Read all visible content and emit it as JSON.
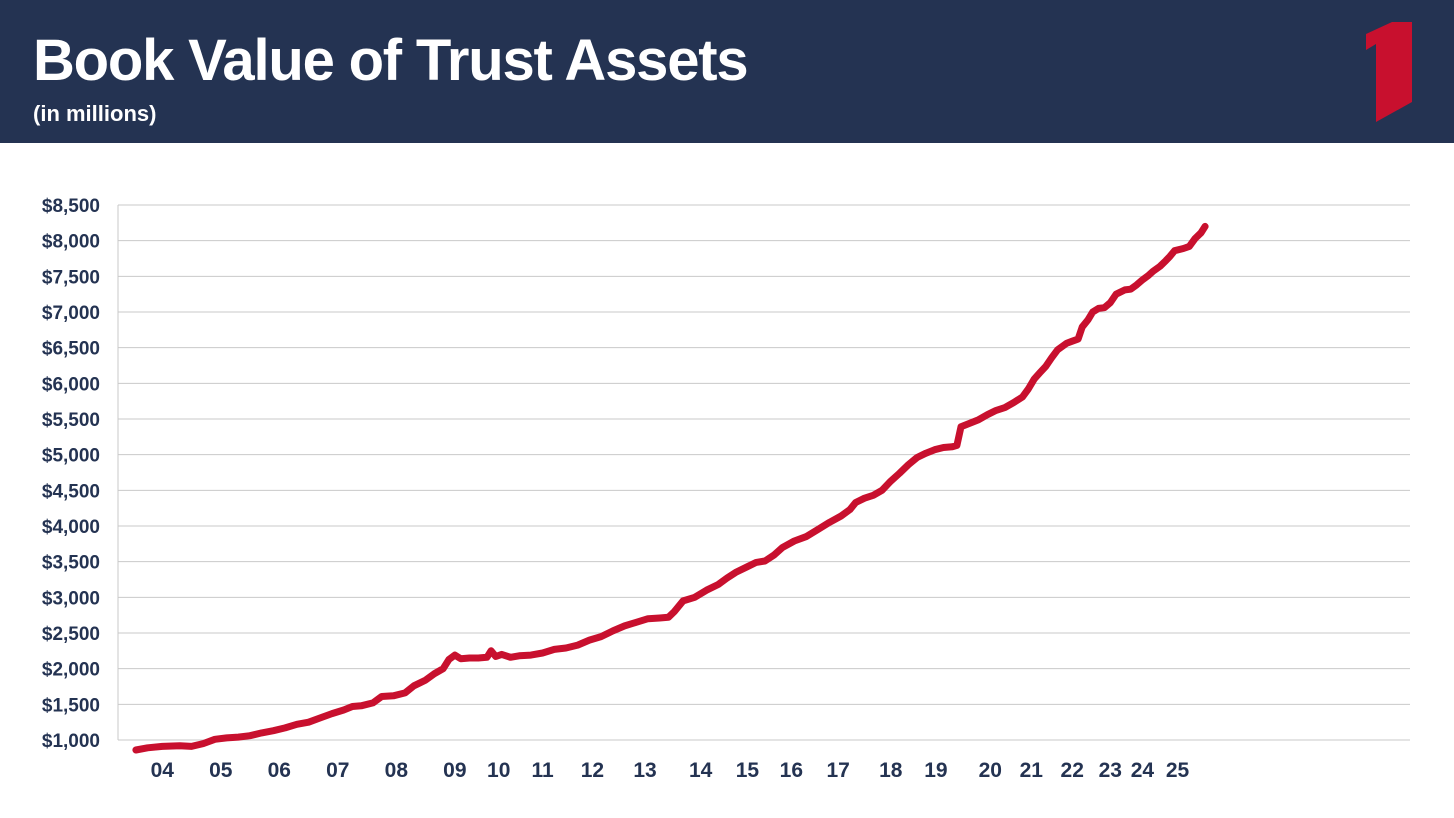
{
  "header": {
    "title": "Book Value of Trust Assets",
    "subtitle": "(in millions)",
    "logo_icon": "red-numeral-one-logo",
    "background_color": "#243352",
    "logo_color": "#c8102e"
  },
  "chart_data": {
    "type": "line",
    "title": "Book Value of Trust Assets",
    "subtitle": "(in millions)",
    "xlabel": "",
    "ylabel": "",
    "grid": true,
    "legend": "none",
    "line_color": "#c8102e",
    "x_range": [
      2003.5,
      2025.1
    ],
    "ylim": [
      1000,
      8500
    ],
    "y_ticks": [
      1000,
      1500,
      2000,
      2500,
      3000,
      3500,
      4000,
      4500,
      5000,
      5500,
      6000,
      6500,
      7000,
      7500,
      8000,
      8500
    ],
    "y_tick_labels": [
      "$1,000",
      "$1,500",
      "$2,000",
      "$2,500",
      "$3,000",
      "$3,500",
      "$4,000",
      "$4,500",
      "$5,000",
      "$5,500",
      "$6,000",
      "$6,500",
      "$7,000",
      "$7,500",
      "$8,000",
      "$8,500"
    ],
    "x_ticks": [
      {
        "label": "04",
        "x": 2004.0
      },
      {
        "label": "05",
        "x": 2005.0
      },
      {
        "label": "06",
        "x": 2006.0
      },
      {
        "label": "07",
        "x": 2007.0
      },
      {
        "label": "08",
        "x": 2008.0
      },
      {
        "label": "09",
        "x": 2009.0
      },
      {
        "label": "10",
        "x": 2009.75
      },
      {
        "label": "11",
        "x": 2010.5
      },
      {
        "label": "12",
        "x": 2011.35
      },
      {
        "label": "13",
        "x": 2012.25
      },
      {
        "label": "14",
        "x": 2013.2
      },
      {
        "label": "15",
        "x": 2014.0
      },
      {
        "label": "16",
        "x": 2014.75
      },
      {
        "label": "17",
        "x": 2015.55
      },
      {
        "label": "18",
        "x": 2016.45
      },
      {
        "label": "19",
        "x": 2017.22
      },
      {
        "label": "20",
        "x": 2018.15
      },
      {
        "label": "21",
        "x": 2018.85
      },
      {
        "label": "22",
        "x": 2019.55
      },
      {
        "label": "23",
        "x": 2020.2
      },
      {
        "label": "24",
        "x": 2020.75
      },
      {
        "label": "25",
        "x": 2021.35
      }
    ],
    "series": [
      {
        "name": "Book Value of Trust Assets",
        "points": [
          [
            2003.55,
            860
          ],
          [
            2003.75,
            890
          ],
          [
            2004.0,
            910
          ],
          [
            2004.3,
            920
          ],
          [
            2004.5,
            910
          ],
          [
            2004.7,
            950
          ],
          [
            2004.9,
            1010
          ],
          [
            2005.1,
            1030
          ],
          [
            2005.3,
            1040
          ],
          [
            2005.5,
            1060
          ],
          [
            2005.7,
            1100
          ],
          [
            2005.9,
            1130
          ],
          [
            2006.1,
            1170
          ],
          [
            2006.3,
            1220
          ],
          [
            2006.5,
            1250
          ],
          [
            2006.7,
            1310
          ],
          [
            2006.9,
            1370
          ],
          [
            2007.1,
            1420
          ],
          [
            2007.25,
            1470
          ],
          [
            2007.4,
            1480
          ],
          [
            2007.6,
            1520
          ],
          [
            2007.75,
            1610
          ],
          [
            2007.95,
            1620
          ],
          [
            2008.15,
            1660
          ],
          [
            2008.3,
            1760
          ],
          [
            2008.5,
            1840
          ],
          [
            2008.65,
            1930
          ],
          [
            2008.8,
            2000
          ],
          [
            2008.9,
            2130
          ],
          [
            2009.0,
            2190
          ],
          [
            2009.1,
            2140
          ],
          [
            2009.25,
            2150
          ],
          [
            2009.4,
            2150
          ],
          [
            2009.55,
            2160
          ],
          [
            2009.62,
            2250
          ],
          [
            2009.7,
            2170
          ],
          [
            2009.8,
            2200
          ],
          [
            2009.95,
            2160
          ],
          [
            2010.1,
            2180
          ],
          [
            2010.3,
            2190
          ],
          [
            2010.5,
            2220
          ],
          [
            2010.7,
            2270
          ],
          [
            2010.9,
            2290
          ],
          [
            2011.1,
            2330
          ],
          [
            2011.3,
            2400
          ],
          [
            2011.5,
            2450
          ],
          [
            2011.7,
            2530
          ],
          [
            2011.9,
            2600
          ],
          [
            2012.1,
            2650
          ],
          [
            2012.3,
            2700
          ],
          [
            2012.5,
            2710
          ],
          [
            2012.65,
            2720
          ],
          [
            2012.75,
            2800
          ],
          [
            2012.9,
            2950
          ],
          [
            2013.1,
            3000
          ],
          [
            2013.3,
            3100
          ],
          [
            2013.5,
            3180
          ],
          [
            2013.65,
            3270
          ],
          [
            2013.8,
            3350
          ],
          [
            2014.0,
            3430
          ],
          [
            2014.15,
            3490
          ],
          [
            2014.3,
            3510
          ],
          [
            2014.45,
            3590
          ],
          [
            2014.6,
            3700
          ],
          [
            2014.8,
            3790
          ],
          [
            2015.0,
            3850
          ],
          [
            2015.2,
            3950
          ],
          [
            2015.4,
            4050
          ],
          [
            2015.6,
            4140
          ],
          [
            2015.75,
            4230
          ],
          [
            2015.85,
            4330
          ],
          [
            2016.0,
            4390
          ],
          [
            2016.15,
            4430
          ],
          [
            2016.3,
            4500
          ],
          [
            2016.45,
            4630
          ],
          [
            2016.6,
            4740
          ],
          [
            2016.75,
            4860
          ],
          [
            2016.9,
            4960
          ],
          [
            2017.05,
            5020
          ],
          [
            2017.2,
            5070
          ],
          [
            2017.35,
            5100
          ],
          [
            2017.5,
            5110
          ],
          [
            2017.58,
            5130
          ],
          [
            2017.65,
            5390
          ],
          [
            2017.8,
            5440
          ],
          [
            2017.95,
            5490
          ],
          [
            2018.1,
            5560
          ],
          [
            2018.25,
            5620
          ],
          [
            2018.4,
            5660
          ],
          [
            2018.55,
            5730
          ],
          [
            2018.7,
            5810
          ],
          [
            2018.8,
            5920
          ],
          [
            2018.9,
            6060
          ],
          [
            2019.0,
            6150
          ],
          [
            2019.1,
            6240
          ],
          [
            2019.2,
            6360
          ],
          [
            2019.3,
            6470
          ],
          [
            2019.45,
            6560
          ],
          [
            2019.55,
            6590
          ],
          [
            2019.65,
            6620
          ],
          [
            2019.72,
            6790
          ],
          [
            2019.82,
            6890
          ],
          [
            2019.9,
            7000
          ],
          [
            2020.0,
            7050
          ],
          [
            2020.1,
            7060
          ],
          [
            2020.2,
            7130
          ],
          [
            2020.3,
            7250
          ],
          [
            2020.45,
            7310
          ],
          [
            2020.55,
            7320
          ],
          [
            2020.65,
            7380
          ],
          [
            2020.75,
            7450
          ],
          [
            2020.85,
            7510
          ],
          [
            2020.93,
            7570
          ],
          [
            2021.05,
            7640
          ],
          [
            2021.15,
            7720
          ],
          [
            2021.22,
            7780
          ],
          [
            2021.3,
            7860
          ],
          [
            2021.45,
            7890
          ],
          [
            2021.55,
            7920
          ],
          [
            2021.65,
            8030
          ],
          [
            2021.75,
            8110
          ],
          [
            2021.82,
            8200
          ]
        ]
      }
    ]
  }
}
